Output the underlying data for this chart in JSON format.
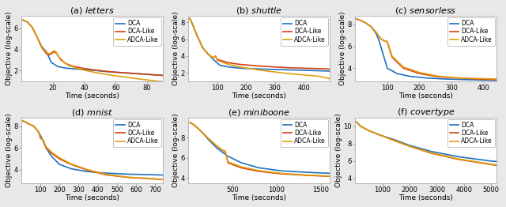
{
  "subplots": [
    {
      "title_prefix": "(a) ",
      "title_name": "letters",
      "xlabel": "Time (seconds)",
      "ylabel": "Objective (log-scale)",
      "xlim": [
        0,
        90
      ],
      "ylim": [
        1.0,
        7.2
      ],
      "xticks": [
        20,
        40,
        60,
        80
      ],
      "yticks": [
        2,
        4,
        6
      ],
      "curves": {
        "DCA": {
          "color": "#2070c0",
          "x": [
            1,
            4,
            7,
            10,
            13,
            16,
            19,
            23,
            28,
            35,
            45,
            55,
            65,
            75,
            85,
            90
          ],
          "y": [
            6.8,
            6.6,
            6.1,
            5.2,
            4.3,
            3.8,
            2.8,
            2.4,
            2.25,
            2.15,
            2.05,
            1.9,
            1.8,
            1.7,
            1.6,
            1.55
          ]
        },
        "DCA-Like": {
          "color": "#d44010",
          "x": [
            1,
            4,
            7,
            10,
            13,
            16,
            18,
            21,
            22,
            25,
            28,
            32,
            40,
            50,
            60,
            70,
            80,
            90
          ],
          "y": [
            6.8,
            6.6,
            6.1,
            5.2,
            4.2,
            3.6,
            3.5,
            3.8,
            3.7,
            3.1,
            2.7,
            2.45,
            2.2,
            2.0,
            1.85,
            1.75,
            1.65,
            1.55
          ]
        },
        "ADCA-Like": {
          "color": "#e0a010",
          "x": [
            1,
            4,
            7,
            10,
            13,
            16,
            18,
            21,
            22,
            25,
            30,
            38,
            48,
            58,
            68,
            78,
            88,
            90
          ],
          "y": [
            6.8,
            6.6,
            6.1,
            5.2,
            4.3,
            3.7,
            3.6,
            3.9,
            3.8,
            3.0,
            2.5,
            2.1,
            1.8,
            1.55,
            1.35,
            1.15,
            0.98,
            0.95
          ]
        }
      }
    },
    {
      "title_prefix": "(b) ",
      "title_name": "shuttle",
      "xlabel": "Time (seconds)",
      "ylabel": "Objective (log-scale)",
      "xlim": [
        0,
        490
      ],
      "ylim": [
        1.0,
        8.8
      ],
      "xticks": [
        100,
        200,
        300,
        400
      ],
      "yticks": [
        2,
        4,
        6,
        8
      ],
      "curves": {
        "DCA": {
          "color": "#2070c0",
          "x": [
            5,
            15,
            30,
            50,
            70,
            90,
            110,
            140,
            180,
            250,
            350,
            450,
            490
          ],
          "y": [
            8.5,
            7.8,
            6.5,
            5.0,
            4.2,
            3.5,
            2.9,
            2.7,
            2.55,
            2.45,
            2.35,
            2.25,
            2.2
          ]
        },
        "DCA-Like": {
          "color": "#d44010",
          "x": [
            5,
            15,
            30,
            50,
            70,
            85,
            90,
            95,
            100,
            140,
            180,
            250,
            350,
            450,
            490
          ],
          "y": [
            8.5,
            7.8,
            6.5,
            5.0,
            4.2,
            3.8,
            3.9,
            4.0,
            3.6,
            3.2,
            3.0,
            2.8,
            2.6,
            2.5,
            2.45
          ]
        },
        "ADCA-Like": {
          "color": "#e0a010",
          "x": [
            5,
            15,
            30,
            50,
            70,
            85,
            90,
            95,
            100,
            140,
            180,
            250,
            350,
            450,
            490
          ],
          "y": [
            8.5,
            7.8,
            6.5,
            5.0,
            4.2,
            3.8,
            3.9,
            4.0,
            3.5,
            3.0,
            2.7,
            2.3,
            1.9,
            1.6,
            1.3
          ]
        }
      }
    },
    {
      "title_prefix": "(c) ",
      "title_name": "sensorless",
      "xlabel": "Time (seconds)",
      "ylabel": "Objective (log-scale)",
      "xlim": [
        0,
        440
      ],
      "ylim": [
        2.8,
        8.8
      ],
      "xticks": [
        100,
        200,
        300,
        400
      ],
      "yticks": [
        4,
        6,
        8
      ],
      "curves": {
        "DCA": {
          "color": "#2070c0",
          "x": [
            5,
            15,
            30,
            50,
            65,
            75,
            85,
            100,
            130,
            170,
            220,
            280,
            340,
            400,
            440
          ],
          "y": [
            8.5,
            8.4,
            8.2,
            7.8,
            7.2,
            6.5,
            5.5,
            4.0,
            3.5,
            3.25,
            3.1,
            3.0,
            2.95,
            2.9,
            2.88
          ]
        },
        "DCA-Like": {
          "color": "#d44010",
          "x": [
            5,
            15,
            30,
            50,
            65,
            80,
            90,
            95,
            100,
            115,
            150,
            200,
            260,
            320,
            380,
            440
          ],
          "y": [
            8.5,
            8.4,
            8.2,
            7.8,
            7.3,
            6.7,
            6.5,
            6.5,
            6.4,
            5.0,
            4.0,
            3.5,
            3.2,
            3.1,
            3.0,
            2.95
          ]
        },
        "ADCA-Like": {
          "color": "#e0a010",
          "x": [
            5,
            15,
            30,
            50,
            65,
            80,
            90,
            95,
            100,
            115,
            150,
            200,
            260,
            320,
            380,
            440
          ],
          "y": [
            8.5,
            8.4,
            8.2,
            7.8,
            7.3,
            6.7,
            6.5,
            6.5,
            6.45,
            5.1,
            4.1,
            3.6,
            3.25,
            3.1,
            3.05,
            3.0
          ]
        }
      }
    },
    {
      "title_prefix": "(d) ",
      "title_name": "mnist",
      "xlabel": "Time (seconds)",
      "ylabel": "Objective (log-scale)",
      "xlim": [
        0,
        740
      ],
      "ylim": [
        2.8,
        8.8
      ],
      "xticks": [
        100,
        200,
        300,
        400,
        500,
        600,
        700
      ],
      "yticks": [
        4,
        6,
        8
      ],
      "curves": {
        "DCA": {
          "color": "#2070c0",
          "x": [
            5,
            20,
            40,
            65,
            90,
            110,
            130,
            160,
            200,
            260,
            340,
            440,
            560,
            680,
            740
          ],
          "y": [
            8.5,
            8.4,
            8.2,
            8.0,
            7.5,
            6.8,
            6.0,
            5.2,
            4.5,
            4.1,
            3.85,
            3.7,
            3.6,
            3.55,
            3.52
          ]
        },
        "DCA-Like": {
          "color": "#d44010",
          "x": [
            5,
            20,
            40,
            65,
            90,
            100,
            115,
            130,
            160,
            200,
            260,
            340,
            440,
            560,
            680,
            740
          ],
          "y": [
            8.5,
            8.4,
            8.2,
            8.0,
            7.5,
            6.9,
            6.7,
            6.0,
            5.5,
            5.0,
            4.5,
            4.0,
            3.55,
            3.3,
            3.18,
            3.1
          ]
        },
        "ADCA-Like": {
          "color": "#e0a010",
          "x": [
            5,
            20,
            40,
            65,
            90,
            100,
            115,
            130,
            160,
            200,
            260,
            340,
            440,
            560,
            680,
            740
          ],
          "y": [
            8.5,
            8.4,
            8.2,
            8.0,
            7.5,
            6.9,
            6.7,
            6.1,
            5.6,
            5.1,
            4.55,
            4.05,
            3.6,
            3.32,
            3.2,
            3.12
          ]
        }
      }
    },
    {
      "title_prefix": "(e) ",
      "title_name": "miniboone",
      "xlabel": "Time (seconds)",
      "ylabel": "Objective (log-scale)",
      "xlim": [
        0,
        1600
      ],
      "ylim": [
        3.5,
        10.0
      ],
      "xticks": [
        500,
        1000,
        1500
      ],
      "yticks": [
        4,
        6,
        8
      ],
      "curves": {
        "DCA": {
          "color": "#2070c0",
          "x": [
            20,
            60,
            100,
            160,
            230,
            320,
            440,
            600,
            800,
            1050,
            1350,
            1600
          ],
          "y": [
            9.5,
            9.3,
            9.0,
            8.5,
            7.8,
            7.0,
            6.2,
            5.5,
            5.0,
            4.7,
            4.55,
            4.45
          ]
        },
        "DCA-Like": {
          "color": "#d44010",
          "x": [
            20,
            60,
            100,
            160,
            230,
            320,
            380,
            420,
            450,
            600,
            800,
            1050,
            1350,
            1600
          ],
          "y": [
            9.5,
            9.3,
            9.0,
            8.5,
            7.9,
            7.2,
            6.8,
            6.6,
            5.5,
            5.0,
            4.65,
            4.4,
            4.25,
            4.15
          ]
        },
        "ADCA-Like": {
          "color": "#e0a010",
          "x": [
            20,
            60,
            100,
            160,
            230,
            320,
            380,
            420,
            450,
            600,
            800,
            1050,
            1350,
            1600
          ],
          "y": [
            9.5,
            9.3,
            9.0,
            8.5,
            7.9,
            7.2,
            6.8,
            6.65,
            5.6,
            5.1,
            4.72,
            4.45,
            4.28,
            4.18
          ]
        }
      }
    },
    {
      "title_prefix": "(f) ",
      "title_name": "covertype",
      "xlabel": "Time (seconds)",
      "ylabel": "Objective (log-scale)",
      "xlim": [
        0,
        5200
      ],
      "ylim": [
        3.5,
        11.0
      ],
      "xticks": [
        1000,
        2000,
        3000,
        4000,
        5000
      ],
      "yticks": [
        4,
        6,
        8,
        10
      ],
      "curves": {
        "DCA": {
          "color": "#2070c0",
          "x": [
            50,
            200,
            500,
            900,
            1400,
            2000,
            2800,
            3800,
            5000,
            5200
          ],
          "y": [
            10.5,
            10.0,
            9.5,
            9.0,
            8.5,
            7.8,
            7.1,
            6.5,
            6.0,
            5.95
          ]
        },
        "DCA-Like": {
          "color": "#d44010",
          "x": [
            50,
            200,
            500,
            900,
            1400,
            2000,
            2800,
            3800,
            5000,
            5200
          ],
          "y": [
            10.5,
            10.0,
            9.5,
            9.0,
            8.4,
            7.7,
            6.9,
            6.2,
            5.6,
            5.5
          ]
        },
        "ADCA-Like": {
          "color": "#e0a010",
          "x": [
            50,
            200,
            500,
            900,
            1400,
            2000,
            2800,
            3800,
            5000,
            5200
          ],
          "y": [
            10.5,
            10.0,
            9.5,
            9.0,
            8.4,
            7.7,
            6.95,
            6.25,
            5.65,
            5.55
          ]
        }
      }
    }
  ],
  "legend_labels": [
    "DCA",
    "DCA-Like",
    "ADCA-Like"
  ],
  "legend_colors": [
    "#2070c0",
    "#d44010",
    "#e0a010"
  ],
  "fig_facecolor": "#e8e8e8",
  "ax_facecolor": "#ffffff",
  "linewidth": 1.2,
  "spine_color": "#aaaaaa",
  "tick_color": "#444444",
  "label_fontsize": 6.5,
  "tick_fontsize": 6,
  "title_fontsize": 8,
  "legend_fontsize": 5.5
}
